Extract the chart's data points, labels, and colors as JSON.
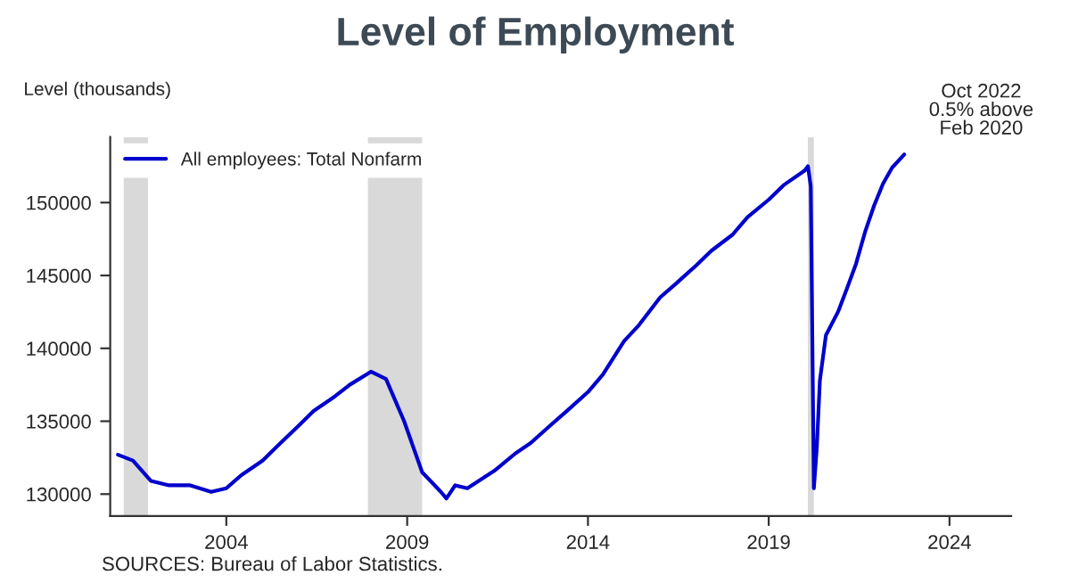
{
  "chart_data": {
    "type": "line",
    "title": "Level of Employment",
    "ylabel": "Level (thousands)",
    "x": [
      "2001-01",
      "2001-06",
      "2001-12",
      "2002-06",
      "2003-01",
      "2003-08",
      "2004-01",
      "2004-06",
      "2005-01",
      "2005-06",
      "2006-01",
      "2006-06",
      "2007-01",
      "2007-06",
      "2008-01",
      "2008-06",
      "2008-12",
      "2009-06",
      "2009-12",
      "2010-02",
      "2010-05",
      "2010-09",
      "2011-06",
      "2012-01",
      "2012-06",
      "2013-01",
      "2013-06",
      "2014-01",
      "2014-06",
      "2015-01",
      "2015-06",
      "2016-01",
      "2016-06",
      "2017-01",
      "2017-06",
      "2018-01",
      "2018-06",
      "2019-01",
      "2019-06",
      "2020-01",
      "2020-02",
      "2020-03",
      "2020-04",
      "2020-05",
      "2020-06",
      "2020-08",
      "2020-12",
      "2021-03",
      "2021-06",
      "2021-09",
      "2021-12",
      "2022-03",
      "2022-06",
      "2022-10"
    ],
    "series": [
      {
        "name": "All employees: Total Nonfarm",
        "color": "#0000cc",
        "values": [
          132700,
          132300,
          130900,
          130600,
          130600,
          130150,
          130400,
          131300,
          132300,
          133300,
          134700,
          135700,
          136700,
          137500,
          138400,
          137900,
          135000,
          131500,
          130200,
          129700,
          130600,
          130400,
          131600,
          132800,
          133500,
          134800,
          135700,
          137000,
          138200,
          140500,
          141600,
          143500,
          144400,
          145700,
          146700,
          147800,
          149000,
          150200,
          151200,
          152200,
          152500,
          151100,
          130400,
          133200,
          137800,
          140900,
          142500,
          144100,
          145800,
          148000,
          149800,
          151300,
          152400,
          153300
        ]
      }
    ],
    "xlim": [
      "2000-10-15",
      "2025-09-15"
    ],
    "xticks": [
      {
        "value": "2004-01-01",
        "label": "2004"
      },
      {
        "value": "2009-01-01",
        "label": "2009"
      },
      {
        "value": "2014-01-01",
        "label": "2014"
      },
      {
        "value": "2019-01-01",
        "label": "2019"
      },
      {
        "value": "2024-01-01",
        "label": "2024"
      }
    ],
    "ylim": [
      128500,
      154500
    ],
    "yticks": [
      130000,
      135000,
      140000,
      145000,
      150000
    ],
    "bands": [
      {
        "axis": "x",
        "from": "2001-03",
        "to": "2001-11",
        "color": "#d9d9d9"
      },
      {
        "axis": "x",
        "from": "2007-12",
        "to": "2009-06",
        "color": "#d9d9d9"
      },
      {
        "axis": "x",
        "from": "2020-02",
        "to": "2020-04",
        "color": "#d9d9d9"
      }
    ],
    "annotations": [
      "Oct 2022\n0.5% above\nFeb 2020",
      "SOURCES: Bureau of Labor Statistics."
    ],
    "legend": "top left",
    "grid": false,
    "line_style": "solid",
    "marker": "none"
  }
}
